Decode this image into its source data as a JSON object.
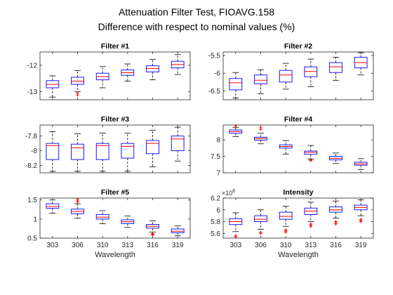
{
  "figure": {
    "title_line1": "Attenuation Filter Test, FIOAVG.158",
    "title_line2": "Difference with respect to nominal values (%)"
  },
  "colors": {
    "box": "#0000ff",
    "median": "#ff0000",
    "whisker": "#000000",
    "outlier": "#ff0000",
    "axis": "#262626"
  },
  "chart_data": [
    {
      "type": "boxplot",
      "title": "Filter #1",
      "categories": [
        "303",
        "306",
        "310",
        "313",
        "316",
        "319"
      ],
      "ylim": [
        -13.3,
        -11.5
      ],
      "yticks": [
        -13,
        -12
      ],
      "ytick_labels": [
        "-13",
        "-12"
      ],
      "xlabel": "",
      "show_xticklabels": false,
      "boxes": [
        {
          "whisker_low": -13.2,
          "q1": -12.85,
          "median": -12.72,
          "q3": -12.58,
          "whisker_high": -12.4,
          "outliers": []
        },
        {
          "whisker_low": -13.0,
          "q1": -12.72,
          "median": -12.6,
          "q3": -12.45,
          "whisker_high": -12.2,
          "outliers": [
            -13.05,
            -13.12
          ]
        },
        {
          "whisker_low": -12.85,
          "q1": -12.55,
          "median": -12.43,
          "q3": -12.3,
          "whisker_high": -12.05,
          "outliers": []
        },
        {
          "whisker_low": -12.6,
          "q1": -12.38,
          "median": -12.28,
          "q3": -12.18,
          "whisker_high": -11.95,
          "outliers": []
        },
        {
          "whisker_low": -12.55,
          "q1": -12.25,
          "median": -12.12,
          "q3": -12.02,
          "whisker_high": -11.78,
          "outliers": []
        },
        {
          "whisker_low": -12.35,
          "q1": -12.1,
          "median": -11.97,
          "q3": -11.85,
          "whisker_high": -11.6,
          "outliers": []
        }
      ]
    },
    {
      "type": "boxplot",
      "title": "Filter #2",
      "categories": [
        "303",
        "306",
        "310",
        "313",
        "316",
        "319"
      ],
      "ylim": [
        -6.75,
        -5.4
      ],
      "yticks": [
        -6.5,
        -6,
        -5.5
      ],
      "ytick_labels": [
        "-6.5",
        "-6",
        "-5.5"
      ],
      "xlabel": "",
      "show_xticklabels": false,
      "boxes": [
        {
          "whisker_low": -6.7,
          "q1": -6.47,
          "median": -6.27,
          "q3": -6.15,
          "whisker_high": -5.98,
          "outliers": []
        },
        {
          "whisker_low": -6.58,
          "q1": -6.3,
          "median": -6.2,
          "q3": -6.05,
          "whisker_high": -5.9,
          "outliers": []
        },
        {
          "whisker_low": -6.45,
          "q1": -6.25,
          "median": -6.05,
          "q3": -5.92,
          "whisker_high": -5.72,
          "outliers": []
        },
        {
          "whisker_low": -6.38,
          "q1": -6.1,
          "median": -5.95,
          "q3": -5.82,
          "whisker_high": -5.6,
          "outliers": []
        },
        {
          "whisker_low": -6.2,
          "q1": -5.98,
          "median": -5.82,
          "q3": -5.7,
          "whisker_high": -5.55,
          "outliers": []
        },
        {
          "whisker_low": -6.05,
          "q1": -5.85,
          "median": -5.7,
          "q3": -5.55,
          "whisker_high": -5.42,
          "outliers": []
        }
      ]
    },
    {
      "type": "boxplot",
      "title": "Filter #3",
      "categories": [
        "303",
        "306",
        "310",
        "313",
        "316",
        "319"
      ],
      "ylim": [
        -8.3,
        -7.65
      ],
      "yticks": [
        -8.2,
        -8,
        -7.8
      ],
      "ytick_labels": [
        "-8.2",
        "-8",
        "-7.8"
      ],
      "xlabel": "",
      "show_xticklabels": false,
      "boxes": [
        {
          "whisker_low": -8.28,
          "q1": -8.12,
          "median": -7.93,
          "q3": -7.9,
          "whisker_high": -7.74,
          "outliers": []
        },
        {
          "whisker_low": -8.28,
          "q1": -8.12,
          "median": -7.96,
          "q3": -7.91,
          "whisker_high": -7.77,
          "outliers": []
        },
        {
          "whisker_low": -8.28,
          "q1": -8.12,
          "median": -7.93,
          "q3": -7.9,
          "whisker_high": -7.76,
          "outliers": []
        },
        {
          "whisker_low": -8.28,
          "q1": -8.1,
          "median": -7.94,
          "q3": -7.9,
          "whisker_high": -7.76,
          "outliers": []
        },
        {
          "whisker_low": -8.22,
          "q1": -8.04,
          "median": -7.9,
          "q3": -7.86,
          "whisker_high": -7.72,
          "outliers": []
        },
        {
          "whisker_low": -8.14,
          "q1": -8.0,
          "median": -7.84,
          "q3": -7.8,
          "whisker_high": -7.68,
          "outliers": []
        }
      ]
    },
    {
      "type": "boxplot",
      "title": "Filter #4",
      "categories": [
        "303",
        "306",
        "310",
        "313",
        "316",
        "319"
      ],
      "ylim": [
        7.0,
        8.45
      ],
      "yticks": [
        7,
        7.5,
        8
      ],
      "ytick_labels": [
        "7",
        "7.5",
        "8"
      ],
      "xlabel": "",
      "show_xticklabels": false,
      "boxes": [
        {
          "whisker_low": 8.1,
          "q1": 8.2,
          "median": 8.25,
          "q3": 8.3,
          "whisker_high": 8.37,
          "outliers": [
            8.42
          ]
        },
        {
          "whisker_low": 7.88,
          "q1": 7.99,
          "median": 8.04,
          "q3": 8.08,
          "whisker_high": 8.2,
          "outliers": [
            8.32,
            8.37
          ]
        },
        {
          "whisker_low": 7.57,
          "q1": 7.75,
          "median": 7.8,
          "q3": 7.85,
          "whisker_high": 7.98,
          "outliers": []
        },
        {
          "whisker_low": 7.42,
          "q1": 7.56,
          "median": 7.62,
          "q3": 7.66,
          "whisker_high": 7.83,
          "outliers": [
            7.37,
            7.39
          ]
        },
        {
          "whisker_low": 7.28,
          "q1": 7.39,
          "median": 7.44,
          "q3": 7.5,
          "whisker_high": 7.6,
          "outliers": []
        },
        {
          "whisker_low": 7.1,
          "q1": 7.23,
          "median": 7.27,
          "q3": 7.32,
          "whisker_high": 7.43,
          "outliers": []
        }
      ]
    },
    {
      "type": "boxplot",
      "title": "Filter #5",
      "categories": [
        "303",
        "306",
        "310",
        "313",
        "316",
        "319"
      ],
      "ylim": [
        0.5,
        1.55
      ],
      "yticks": [
        0.5,
        1,
        1.5
      ],
      "ytick_labels": [
        "0.5",
        "1",
        "1.5"
      ],
      "xlabel": "Wavelength",
      "show_xticklabels": true,
      "boxes": [
        {
          "whisker_low": 1.15,
          "q1": 1.28,
          "median": 1.33,
          "q3": 1.4,
          "whisker_high": 1.5,
          "outliers": []
        },
        {
          "whisker_low": 1.02,
          "q1": 1.14,
          "median": 1.2,
          "q3": 1.26,
          "whisker_high": 1.4,
          "outliers": [
            1.48,
            1.52,
            1.45
          ]
        },
        {
          "whisker_low": 0.88,
          "q1": 1.0,
          "median": 1.05,
          "q3": 1.12,
          "whisker_high": 1.22,
          "outliers": []
        },
        {
          "whisker_low": 0.78,
          "q1": 0.88,
          "median": 0.93,
          "q3": 0.98,
          "whisker_high": 1.08,
          "outliers": []
        },
        {
          "whisker_low": 0.66,
          "q1": 0.76,
          "median": 0.81,
          "q3": 0.86,
          "whisker_high": 0.95,
          "outliers": [
            0.6,
            0.62,
            0.58
          ]
        },
        {
          "whisker_low": 0.56,
          "q1": 0.64,
          "median": 0.68,
          "q3": 0.74,
          "whisker_high": 0.82,
          "outliers": []
        }
      ]
    },
    {
      "type": "boxplot",
      "title": "Intensity",
      "categories": [
        "303",
        "306",
        "310",
        "313",
        "316",
        "319"
      ],
      "ylim": [
        5.52,
        6.2
      ],
      "yticks": [
        5.6,
        5.8,
        6.0,
        6.2
      ],
      "ytick_labels": [
        "5.6",
        "5.8",
        "6",
        "6.2"
      ],
      "y_exponent_label": "×10",
      "y_exponent_power": "6",
      "xlabel": "Wavelength",
      "show_xticklabels": true,
      "boxes": [
        {
          "whisker_low": 5.63,
          "q1": 5.75,
          "median": 5.8,
          "q3": 5.85,
          "whisker_high": 5.95,
          "outliers": [
            5.54,
            5.56
          ]
        },
        {
          "whisker_low": 5.67,
          "q1": 5.8,
          "median": 5.84,
          "q3": 5.9,
          "whisker_high": 6.0,
          "outliers": [
            5.6,
            5.62
          ]
        },
        {
          "whisker_low": 5.72,
          "q1": 5.84,
          "median": 5.89,
          "q3": 5.96,
          "whisker_high": 6.06,
          "outliers": [
            5.64,
            5.66,
            5.62
          ]
        },
        {
          "whisker_low": 5.8,
          "q1": 5.92,
          "median": 5.98,
          "q3": 6.03,
          "whisker_high": 6.13,
          "outliers": [
            5.72,
            5.74,
            5.76
          ]
        },
        {
          "whisker_low": 5.86,
          "q1": 5.96,
          "median": 6.0,
          "q3": 6.05,
          "whisker_high": 6.15,
          "outliers": [
            5.78,
            5.8,
            5.76
          ]
        },
        {
          "whisker_low": 5.9,
          "q1": 6.0,
          "median": 6.04,
          "q3": 6.08,
          "whisker_high": 6.17,
          "outliers": [
            5.8,
            5.82,
            5.84
          ]
        }
      ]
    }
  ]
}
